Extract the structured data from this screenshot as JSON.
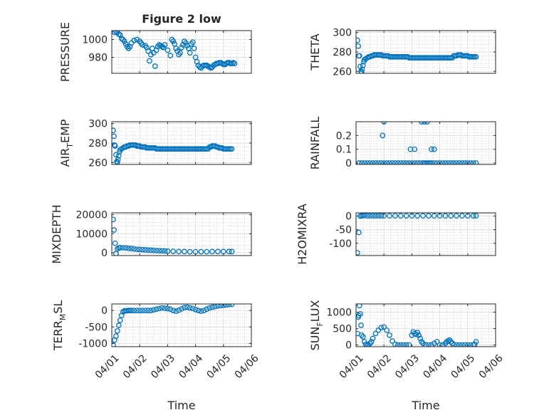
{
  "figure_title": "Figure 2 low",
  "colors": {
    "marker": "#0072BD",
    "axis": "#262626",
    "grid": "#b8b8b8",
    "background": "#ffffff"
  },
  "chart_data": [
    {
      "id": "pressure",
      "type": "scatter",
      "title": "Figure 2 low",
      "ylabel": "PRESSURE",
      "xlabel": "",
      "xlim": [
        0,
        5
      ],
      "ylim": [
        962,
        1010
      ],
      "yticks": [
        980,
        1000
      ],
      "ytick_labels": [
        "980",
        "1000"
      ],
      "x": [
        0.1,
        0.15,
        0.2,
        0.25,
        0.3,
        0.35,
        0.4,
        0.45,
        0.5,
        0.55,
        0.6,
        0.65,
        0.7,
        0.8,
        0.9,
        1.0,
        1.05,
        1.1,
        1.2,
        1.25,
        1.3,
        1.35,
        1.4,
        1.45,
        1.5,
        1.55,
        1.6,
        1.65,
        1.7,
        1.75,
        1.8,
        1.85,
        1.9,
        2.0,
        2.1,
        2.15,
        2.2,
        2.25,
        2.3,
        2.35,
        2.4,
        2.45,
        2.5,
        2.55,
        2.6,
        2.65,
        2.7,
        2.75,
        2.8,
        2.85,
        2.9,
        2.95,
        3.0,
        3.05,
        3.1,
        3.15,
        3.2,
        3.25,
        3.3,
        3.35,
        3.4,
        3.45,
        3.5,
        3.55,
        3.6,
        3.65,
        3.7,
        3.75,
        3.8,
        3.85,
        3.9,
        3.95,
        4.0,
        4.05,
        4.1,
        4.15,
        4.2,
        4.25,
        4.3,
        4.35,
        4.4
      ],
      "y": [
        1008,
        1009,
        1008,
        1006,
        1005,
        1001,
        1000,
        998,
        995,
        992,
        990,
        992,
        996,
        999,
        1000,
        998,
        996,
        994,
        993,
        991,
        987,
        976,
        983,
        990,
        985,
        970,
        988,
        992,
        994,
        993,
        992,
        991,
        994,
        988,
        982,
        1000,
        998,
        995,
        990,
        987,
        983,
        985,
        991,
        994,
        998,
        996,
        993,
        990,
        985,
        995,
        997,
        990,
        980,
        975,
        971,
        969,
        968,
        970,
        971,
        971,
        971,
        970,
        969,
        968,
        969,
        971,
        972,
        973,
        973,
        974,
        974,
        973,
        972,
        972,
        973,
        974,
        974,
        973,
        973,
        974,
        973
      ]
    },
    {
      "id": "theta",
      "type": "scatter",
      "ylabel": "THETA",
      "xlabel": "",
      "xlim": [
        0,
        5
      ],
      "ylim": [
        258,
        302
      ],
      "yticks": [
        260,
        280,
        300
      ],
      "ytick_labels": [
        "260",
        "280",
        "300"
      ],
      "x": [
        0.05,
        0.08,
        0.1,
        0.12,
        0.15,
        0.18,
        0.2,
        0.22,
        0.25,
        0.28,
        0.3,
        0.35,
        0.4,
        0.45,
        0.5,
        0.55,
        0.6,
        0.65,
        0.7,
        0.75,
        0.8,
        0.85,
        0.9,
        0.95,
        1.0,
        1.05,
        1.1,
        1.15,
        1.2,
        1.25,
        1.3,
        1.35,
        1.4,
        1.45,
        1.5,
        1.55,
        1.6,
        1.65,
        1.7,
        1.75,
        1.8,
        1.85,
        1.9,
        1.95,
        2.0,
        2.05,
        2.1,
        2.15,
        2.2,
        2.25,
        2.3,
        2.35,
        2.4,
        2.45,
        2.5,
        2.55,
        2.6,
        2.65,
        2.7,
        2.75,
        2.8,
        2.85,
        2.9,
        2.95,
        3.0,
        3.05,
        3.1,
        3.15,
        3.2,
        3.25,
        3.3,
        3.35,
        3.4,
        3.45,
        3.5,
        3.55,
        3.6,
        3.65,
        3.7,
        3.75,
        3.8,
        3.85,
        3.9,
        3.95,
        4.0,
        4.05,
        4.1,
        4.15,
        4.2,
        4.25,
        4.3
      ],
      "y": [
        292,
        286,
        276,
        276,
        265,
        260,
        259,
        262,
        266,
        270,
        272,
        273,
        274,
        275,
        275,
        276,
        276,
        277,
        277,
        277,
        277,
        277,
        277,
        276,
        276,
        276,
        276,
        276,
        275,
        275,
        275,
        275,
        275,
        275,
        275,
        275,
        275,
        275,
        275,
        275,
        275,
        275,
        274,
        274,
        274,
        274,
        274,
        274,
        274,
        274,
        274,
        274,
        274,
        274,
        274,
        274,
        274,
        274,
        274,
        274,
        274,
        274,
        274,
        274,
        274,
        274,
        274,
        274,
        274,
        274,
        274,
        274,
        274,
        274,
        276,
        276,
        276,
        277,
        277,
        277,
        276,
        276,
        276,
        276,
        276,
        275,
        275,
        275,
        275,
        275,
        275
      ]
    },
    {
      "id": "air_temp",
      "type": "scatter",
      "ylabel": "AIR_TEMP",
      "xlabel": "",
      "xlim": [
        0,
        5
      ],
      "ylim": [
        258,
        302
      ],
      "yticks": [
        260,
        280,
        300
      ],
      "ytick_labels": [
        "260",
        "280",
        "300"
      ],
      "x": [
        0.05,
        0.08,
        0.1,
        0.12,
        0.15,
        0.18,
        0.2,
        0.22,
        0.25,
        0.28,
        0.3,
        0.35,
        0.4,
        0.45,
        0.5,
        0.55,
        0.6,
        0.65,
        0.7,
        0.75,
        0.8,
        0.85,
        0.9,
        0.95,
        1.0,
        1.05,
        1.1,
        1.15,
        1.2,
        1.25,
        1.3,
        1.35,
        1.4,
        1.45,
        1.5,
        1.55,
        1.6,
        1.65,
        1.7,
        1.75,
        1.8,
        1.85,
        1.9,
        1.95,
        2.0,
        2.05,
        2.1,
        2.15,
        2.2,
        2.25,
        2.3,
        2.35,
        2.4,
        2.45,
        2.5,
        2.55,
        2.6,
        2.65,
        2.7,
        2.75,
        2.8,
        2.85,
        2.9,
        2.95,
        3.0,
        3.05,
        3.1,
        3.15,
        3.2,
        3.25,
        3.3,
        3.35,
        3.4,
        3.45,
        3.5,
        3.55,
        3.6,
        3.65,
        3.7,
        3.75,
        3.8,
        3.85,
        3.9,
        3.95,
        4.0,
        4.05,
        4.1,
        4.15,
        4.2,
        4.25,
        4.3
      ],
      "y": [
        293,
        287,
        278,
        277,
        268,
        261,
        260,
        263,
        267,
        271,
        273,
        274,
        275,
        276,
        276,
        277,
        277,
        278,
        278,
        278,
        278,
        278,
        277,
        277,
        277,
        276,
        276,
        276,
        276,
        275,
        275,
        275,
        275,
        275,
        275,
        275,
        274,
        274,
        274,
        274,
        274,
        274,
        274,
        274,
        274,
        274,
        274,
        274,
        274,
        274,
        274,
        274,
        274,
        274,
        274,
        274,
        274,
        274,
        274,
        274,
        274,
        274,
        274,
        274,
        274,
        274,
        274,
        274,
        274,
        274,
        274,
        274,
        274,
        274,
        276,
        276,
        277,
        277,
        277,
        276,
        276,
        275,
        275,
        275,
        274,
        274,
        274,
        274,
        274,
        274,
        274
      ]
    },
    {
      "id": "rainfall",
      "type": "scatter",
      "ylabel": "RAINFALL",
      "xlabel": "",
      "xlim": [
        0,
        5
      ],
      "ylim": [
        -0.01,
        0.3
      ],
      "yticks": [
        0,
        0.1,
        0.2
      ],
      "ytick_labels": [
        "0",
        "0.1",
        "0.2"
      ],
      "x": [
        0.1,
        0.2,
        0.3,
        0.4,
        0.5,
        0.6,
        0.7,
        0.8,
        0.9,
        1.0,
        1.1,
        1.2,
        1.3,
        1.4,
        1.5,
        1.6,
        1.7,
        1.8,
        1.9,
        2.0,
        2.1,
        2.2,
        2.3,
        2.4,
        2.5,
        2.6,
        2.7,
        2.8,
        2.9,
        3.0,
        3.1,
        3.2,
        3.3,
        3.4,
        3.5,
        3.6,
        3.7,
        3.8,
        3.9,
        4.0,
        4.1,
        4.2,
        4.3,
        0.95,
        1.0,
        1.95,
        2.1,
        2.35,
        2.45,
        2.55,
        2.7,
        2.8,
        2.45,
        2.55,
        2.65
      ],
      "y": [
        0,
        0,
        0,
        0,
        0,
        0,
        0,
        0,
        0,
        0,
        0,
        0,
        0,
        0,
        0,
        0,
        0,
        0,
        0,
        0,
        0,
        0,
        0,
        0,
        0,
        0,
        0,
        0,
        0,
        0,
        0,
        0,
        0,
        0,
        0,
        0,
        0,
        0,
        0,
        0,
        0,
        0,
        0,
        0.2,
        0.3,
        0.1,
        0.1,
        0.3,
        0.3,
        0.3,
        0.1,
        0.1,
        0.0,
        0.0,
        0.0
      ]
    },
    {
      "id": "mixdepth",
      "type": "scatter",
      "ylabel": "MIXDEPTH",
      "xlabel": "",
      "xlim": [
        0,
        5
      ],
      "ylim": [
        -1500,
        21000
      ],
      "yticks": [
        0,
        10000,
        20000
      ],
      "ytick_labels": [
        "0",
        "10000",
        "20000"
      ],
      "x": [
        0.05,
        0.08,
        0.12,
        0.15,
        0.2,
        0.25,
        0.3,
        0.4,
        0.5,
        0.6,
        0.7,
        0.8,
        0.9,
        1.0,
        1.1,
        1.2,
        1.3,
        1.4,
        1.5,
        1.6,
        1.7,
        1.8,
        1.9,
        2.0,
        2.2,
        2.4,
        2.6,
        2.8,
        3.0,
        3.2,
        3.4,
        3.6,
        3.8,
        4.0,
        4.2,
        4.3
      ],
      "y": [
        17500,
        12000,
        5000,
        -500,
        2000,
        2500,
        2600,
        2600,
        2500,
        2300,
        2200,
        2000,
        1800,
        1700,
        1600,
        1500,
        1400,
        1300,
        1200,
        1100,
        1000,
        1000,
        900,
        800,
        700,
        600,
        600,
        500,
        500,
        500,
        500,
        600,
        600,
        600,
        600,
        600
      ]
    },
    {
      "id": "h2omixra",
      "type": "scatter",
      "ylabel": "H2OMIXRA",
      "xlabel": "",
      "xlim": [
        0,
        5
      ],
      "ylim": [
        -145,
        12
      ],
      "yticks": [
        -100,
        -50,
        0
      ],
      "ytick_labels": [
        "-100",
        "-50",
        "0"
      ],
      "x": [
        0.05,
        0.1,
        0.15,
        0.2,
        0.25,
        0.3,
        0.4,
        0.5,
        0.6,
        0.7,
        0.8,
        0.9,
        1.0,
        1.2,
        1.4,
        1.6,
        1.8,
        2.0,
        2.2,
        2.4,
        2.6,
        2.8,
        3.0,
        3.2,
        3.4,
        3.6,
        3.8,
        4.0,
        4.2,
        4.3
      ],
      "y": [
        -135,
        -60,
        0,
        1,
        2,
        2,
        1,
        1,
        1,
        1,
        1,
        1,
        1,
        1,
        1,
        1,
        1,
        1,
        1,
        1,
        1,
        1,
        1,
        1,
        1,
        1,
        1,
        1,
        1,
        1
      ]
    },
    {
      "id": "terr_msl",
      "type": "scatter",
      "ylabel": "TERR_MSL",
      "xlabel": "Time",
      "xlim": [
        0,
        5
      ],
      "ylim": [
        -1100,
        200
      ],
      "yticks": [
        -1000,
        -500,
        0
      ],
      "ytick_labels": [
        "-1000",
        "-500",
        "0"
      ],
      "xticks": [
        0,
        1,
        2,
        3,
        4,
        5
      ],
      "xtick_labels": [
        "04/01",
        "04/02",
        "04/03",
        "04/04",
        "04/05",
        "04/06"
      ],
      "x": [
        0.05,
        0.1,
        0.15,
        0.2,
        0.25,
        0.3,
        0.35,
        0.4,
        0.45,
        0.5,
        0.55,
        0.6,
        0.65,
        0.7,
        0.8,
        0.9,
        1.0,
        1.1,
        1.2,
        1.3,
        1.4,
        1.5,
        1.6,
        1.7,
        1.8,
        1.9,
        2.0,
        2.1,
        2.2,
        2.3,
        2.4,
        2.5,
        2.6,
        2.7,
        2.8,
        2.9,
        3.0,
        3.1,
        3.2,
        3.3,
        3.4,
        3.5,
        3.6,
        3.7,
        3.8,
        3.9,
        4.0,
        4.1,
        4.2,
        4.3
      ],
      "y": [
        -1050,
        -900,
        -780,
        -620,
        -450,
        -300,
        -150,
        -40,
        -10,
        -10,
        -5,
        0,
        0,
        0,
        0,
        0,
        0,
        0,
        0,
        0,
        0,
        20,
        40,
        60,
        80,
        70,
        60,
        40,
        0,
        -20,
        10,
        50,
        90,
        100,
        80,
        60,
        30,
        0,
        -20,
        0,
        40,
        80,
        100,
        120,
        140,
        150,
        160,
        170,
        180,
        190
      ]
    },
    {
      "id": "sun_flux",
      "type": "scatter",
      "ylabel": "SUN_FLUX",
      "xlabel": "Time",
      "xlim": [
        0,
        5
      ],
      "ylim": [
        -50,
        1250
      ],
      "yticks": [
        0,
        500,
        1000
      ],
      "ytick_labels": [
        "0",
        "500",
        "1000"
      ],
      "xticks": [
        0,
        1,
        2,
        3,
        4,
        5
      ],
      "xtick_labels": [
        "04/01",
        "04/02",
        "04/03",
        "04/04",
        "04/05",
        "04/06"
      ],
      "x": [
        0.05,
        0.08,
        0.1,
        0.12,
        0.15,
        0.18,
        0.2,
        0.25,
        0.3,
        0.35,
        0.4,
        0.45,
        0.5,
        0.55,
        0.6,
        0.7,
        0.8,
        0.9,
        1.0,
        1.1,
        1.2,
        1.3,
        1.4,
        1.5,
        1.6,
        1.7,
        1.8,
        1.9,
        2.0,
        2.05,
        2.1,
        2.15,
        2.2,
        2.25,
        2.3,
        2.35,
        2.4,
        2.5,
        2.6,
        2.7,
        2.8,
        2.9,
        3.0,
        3.1,
        3.2,
        3.25,
        3.3,
        3.35,
        3.4,
        3.45,
        3.5,
        3.6,
        3.7,
        3.8,
        3.9,
        4.0,
        4.1,
        4.2,
        4.25,
        4.3
      ],
      "y": [
        350,
        850,
        900,
        1200,
        950,
        600,
        300,
        250,
        100,
        20,
        0,
        0,
        50,
        100,
        200,
        350,
        450,
        530,
        550,
        450,
        300,
        120,
        20,
        0,
        0,
        0,
        0,
        0,
        300,
        400,
        350,
        320,
        380,
        300,
        200,
        100,
        50,
        0,
        0,
        0,
        50,
        100,
        0,
        0,
        50,
        100,
        120,
        150,
        100,
        50,
        0,
        0,
        0,
        0,
        0,
        0,
        0,
        0,
        20,
        100
      ]
    }
  ]
}
